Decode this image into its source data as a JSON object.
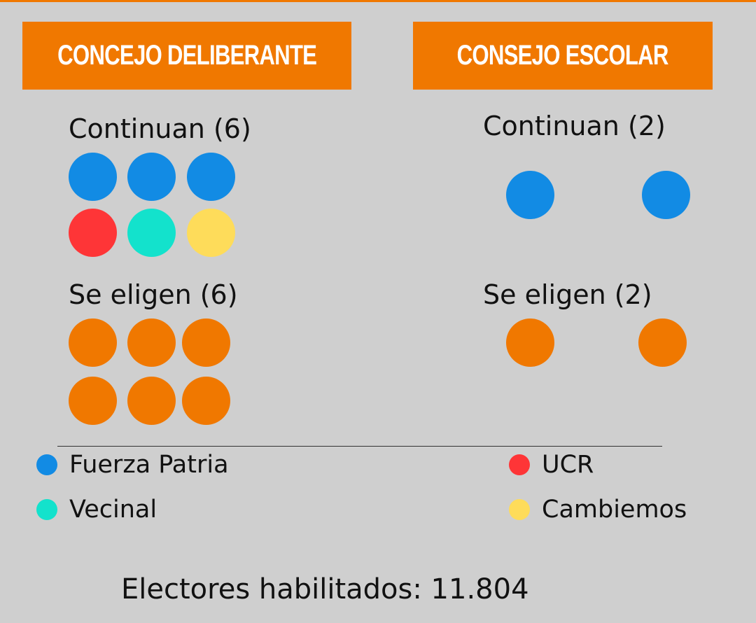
{
  "colors": {
    "background": "#cfcfcf",
    "accent": "#f07800",
    "fuerza_patria": "#128be4",
    "ucr": "#fe3537",
    "vecinal": "#13e2cc",
    "cambiemos": "#fedc5a",
    "elected": "#f07800"
  },
  "concejo": {
    "title": "CONCEJO DELIBERANTE",
    "continuan_label": "Continuan (6)",
    "continuan_seats": [
      "fuerza_patria",
      "fuerza_patria",
      "fuerza_patria",
      "ucr",
      "vecinal",
      "cambiemos"
    ],
    "se_eligen_label": "Se eligen (6)",
    "se_eligen_count": 6
  },
  "consejo": {
    "title": "CONSEJO ESCOLAR",
    "continuan_label": "Continuan (2)",
    "continuan_seats": [
      "fuerza_patria",
      "fuerza_patria"
    ],
    "se_eligen_label": "Se eligen  (2)",
    "se_eligen_count": 2
  },
  "legend": [
    {
      "party": "fuerza_patria",
      "label": "Fuerza Patria"
    },
    {
      "party": "ucr",
      "label": "UCR"
    },
    {
      "party": "vecinal",
      "label": "Vecinal"
    },
    {
      "party": "cambiemos",
      "label": "Cambiemos"
    }
  ],
  "footer": "Electores habilitados: 11.804"
}
